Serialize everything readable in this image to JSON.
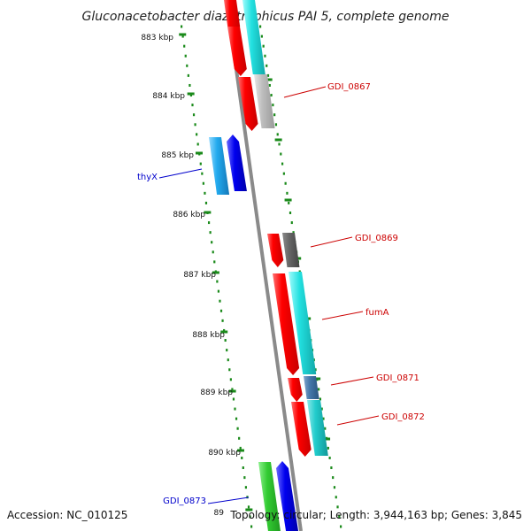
{
  "title": "Gluconacetobacter diazotrophicus PAI 5, complete genome",
  "footer": {
    "accession": "Accession: NC_010125",
    "topology": "Topology: circular; Length: 3,944,163 bp; Genes: 3,845"
  },
  "scale_labels": [
    "883 kbp",
    "884 kbp",
    "885 kbp",
    "886 kbp",
    "887 kbp",
    "888 kbp",
    "889 kbp",
    "890 kbp",
    "89"
  ],
  "gene_labels": [
    {
      "text": "GDI_0867",
      "color": "#cc0000"
    },
    {
      "text": "thyX",
      "color": "#0000cc"
    },
    {
      "text": "GDI_0869",
      "color": "#cc0000"
    },
    {
      "text": "fumA",
      "color": "#cc0000"
    },
    {
      "text": "GDI_0871",
      "color": "#cc0000"
    },
    {
      "text": "GDI_0872",
      "color": "#cc0000"
    },
    {
      "text": "GDI_0873",
      "color": "#0000cc"
    }
  ],
  "colors": {
    "tick": "#1a8a1a",
    "axis": "#888888",
    "red": "#ee0000",
    "cyan": "#22dddd",
    "gray": "#bbbbbb",
    "darkgray": "#666666",
    "blue": "#0000ee",
    "lightblue": "#22aaee",
    "steelblue": "#4477aa",
    "teal": "#22cccc",
    "green": "#33cc33"
  }
}
